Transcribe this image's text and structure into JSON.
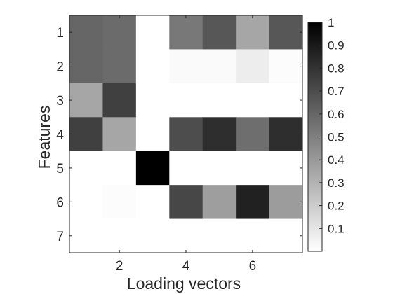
{
  "chart_data": {
    "type": "heatmap",
    "xlabel": "Loading vectors",
    "ylabel": "Features",
    "x": [
      1,
      2,
      3,
      4,
      5,
      6,
      7
    ],
    "y": [
      1,
      2,
      3,
      4,
      5,
      6,
      7
    ],
    "x_ticks": [
      "2",
      "4",
      "6"
    ],
    "y_ticks": [
      "1",
      "2",
      "3",
      "4",
      "5",
      "6",
      "7"
    ],
    "colormap": "white-to-black (gray)",
    "clim": [
      0,
      1
    ],
    "colorbar_ticks": [
      "0.1",
      "0.2",
      "0.3",
      "0.4",
      "0.5",
      "0.6",
      "0.7",
      "0.8",
      "0.9",
      "1"
    ],
    "grid": false,
    "values": [
      [
        0.6,
        0.58,
        0.0,
        0.53,
        0.66,
        0.35,
        0.66
      ],
      [
        0.6,
        0.58,
        0.0,
        0.02,
        0.02,
        0.07,
        0.01
      ],
      [
        0.35,
        0.75,
        0.0,
        0.0,
        0.0,
        0.0,
        0.0
      ],
      [
        0.75,
        0.35,
        0.0,
        0.7,
        0.82,
        0.57,
        0.82
      ],
      [
        0.0,
        0.0,
        1.0,
        0.0,
        0.0,
        0.0,
        0.0
      ],
      [
        0.0,
        0.01,
        0.0,
        0.72,
        0.38,
        0.87,
        0.39
      ],
      [
        0.0,
        0.0,
        0.0,
        0.0,
        0.0,
        0.0,
        0.0
      ]
    ]
  }
}
